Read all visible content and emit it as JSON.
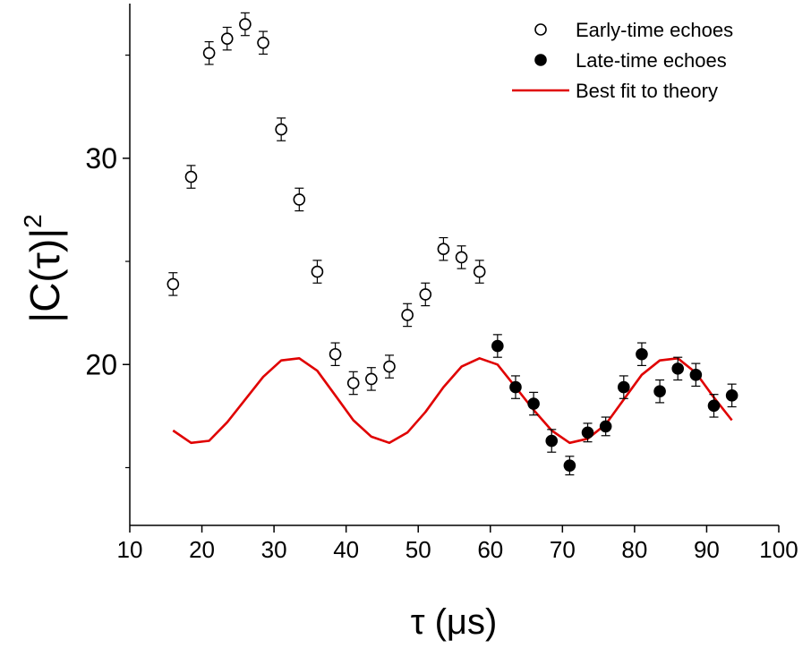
{
  "chart_data": {
    "type": "scatter",
    "xlabel": "τ (μs)",
    "ylabel": "|C(τ)|",
    "ylabel_superscript": "2",
    "xlim": [
      10,
      100
    ],
    "ylim": [
      12.2,
      37.5
    ],
    "xticks": [
      10,
      20,
      30,
      40,
      50,
      60,
      70,
      80,
      90,
      100
    ],
    "yticks_labeled": [
      20,
      30
    ],
    "yticks_minor": [
      15,
      25,
      35
    ],
    "grid": false,
    "legend_position": "top-right",
    "series": [
      {
        "name": "Early-time echoes",
        "kind": "scatter-open",
        "color": "#000000",
        "x": [
          16,
          18.5,
          21,
          23.5,
          26,
          28.5,
          31,
          33.5,
          36,
          38.5,
          41,
          43.5,
          46,
          48.5,
          51,
          53.5,
          56,
          58.5
        ],
        "y": [
          23.9,
          29.1,
          35.1,
          35.8,
          36.5,
          35.6,
          31.4,
          28.0,
          24.5,
          20.5,
          19.1,
          19.3,
          19.9,
          22.4,
          23.4,
          25.6,
          25.2,
          24.5
        ],
        "err": [
          0.55,
          0.55,
          0.55,
          0.55,
          0.55,
          0.55,
          0.55,
          0.55,
          0.55,
          0.55,
          0.55,
          0.55,
          0.55,
          0.55,
          0.55,
          0.55,
          0.55,
          0.55
        ]
      },
      {
        "name": "Late-time echoes",
        "kind": "scatter-filled",
        "color": "#000000",
        "x": [
          61,
          63.5,
          66,
          68.5,
          71,
          73.5,
          76,
          78.5,
          81,
          83.5,
          86,
          88.5,
          91,
          93.5
        ],
        "y": [
          20.9,
          18.9,
          18.1,
          16.3,
          15.1,
          16.7,
          17.0,
          18.9,
          20.5,
          18.7,
          19.8,
          19.5,
          18.0,
          18.5
        ],
        "err": [
          0.55,
          0.55,
          0.55,
          0.55,
          0.45,
          0.45,
          0.45,
          0.55,
          0.55,
          0.55,
          0.55,
          0.55,
          0.55,
          0.55
        ]
      },
      {
        "name": "Best fit to theory",
        "kind": "line",
        "color": "#e00000",
        "x": [
          16,
          18.5,
          21,
          23.5,
          26,
          28.5,
          31,
          33.5,
          36,
          38.5,
          41,
          43.5,
          46,
          48.5,
          51,
          53.5,
          56,
          58.5,
          61,
          63.5,
          66,
          68.5,
          71,
          73.5,
          76,
          78.5,
          81,
          83.5,
          86,
          88.5,
          91,
          93.5
        ],
        "y": [
          16.8,
          16.2,
          16.3,
          17.2,
          18.3,
          19.4,
          20.2,
          20.3,
          19.7,
          18.5,
          17.3,
          16.5,
          16.2,
          16.7,
          17.7,
          18.9,
          19.9,
          20.3,
          20.0,
          18.9,
          17.8,
          16.8,
          16.2,
          16.4,
          17.1,
          18.3,
          19.5,
          20.2,
          20.3,
          19.6,
          18.4,
          17.3
        ]
      }
    ]
  }
}
